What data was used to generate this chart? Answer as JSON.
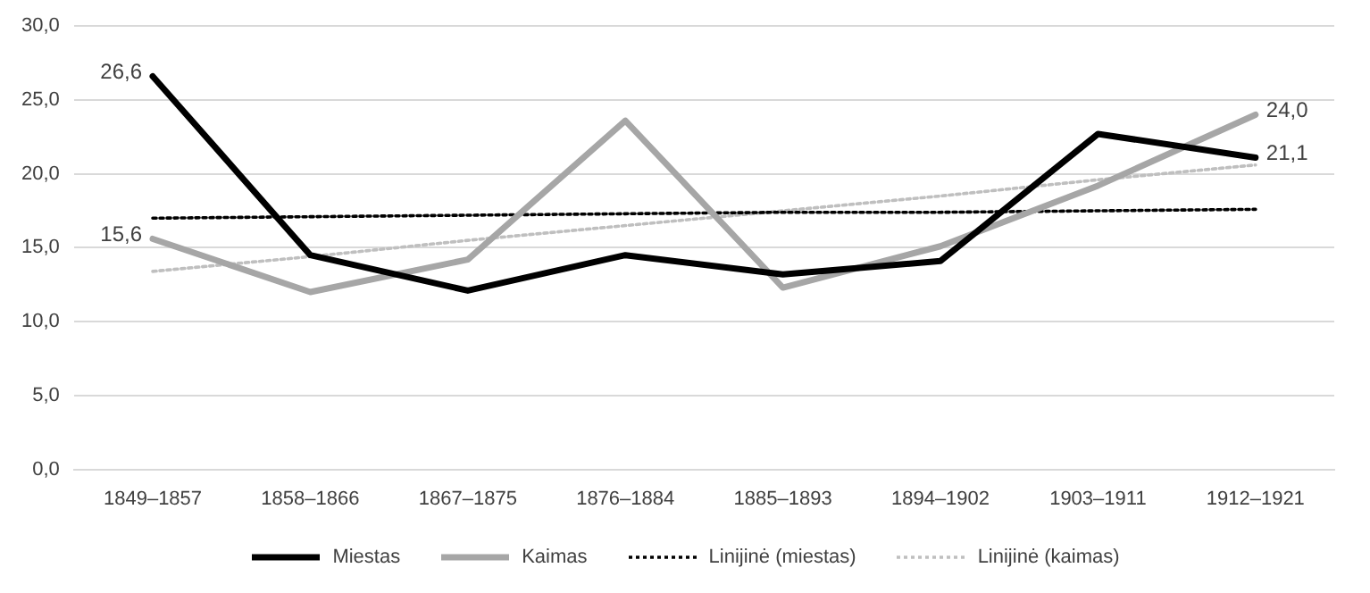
{
  "chart_data": {
    "type": "line",
    "categories": [
      "1849–1857",
      "1858–1866",
      "1867–1875",
      "1876–1884",
      "1885–1893",
      "1894–1902",
      "1903–1911",
      "1912–1921"
    ],
    "series": [
      {
        "name": "Miestas",
        "color": "#000000",
        "values": [
          26.6,
          14.5,
          12.1,
          14.5,
          13.2,
          14.1,
          22.7,
          21.1
        ],
        "value_labels": [
          "26,6",
          null,
          null,
          null,
          null,
          null,
          null,
          "21,1"
        ]
      },
      {
        "name": "Kaimas",
        "color": "#a6a6a6",
        "values": [
          15.6,
          12.0,
          14.2,
          23.6,
          12.3,
          15.1,
          19.2,
          24.0
        ],
        "value_labels": [
          "15,6",
          null,
          null,
          null,
          null,
          null,
          null,
          "24,0"
        ]
      },
      {
        "name": "Linijinė (miestas)",
        "color": "#000000",
        "line_style": "dotted",
        "values": [
          17.0,
          17.1,
          17.2,
          17.3,
          17.4,
          17.4,
          17.5,
          17.6
        ]
      },
      {
        "name": "Linijinė (kaimas)",
        "color": "#bfbfbf",
        "line_style": "dotted",
        "values": [
          13.4,
          14.4,
          15.5,
          16.5,
          17.5,
          18.5,
          19.6,
          20.6
        ]
      }
    ],
    "ylim": [
      0,
      30
    ],
    "yticks": [
      {
        "value": 0,
        "label": "0,0"
      },
      {
        "value": 5,
        "label": "5,0"
      },
      {
        "value": 10,
        "label": "10,0"
      },
      {
        "value": 15,
        "label": "15,0"
      },
      {
        "value": 20,
        "label": "20,0"
      },
      {
        "value": 25,
        "label": "25,0"
      },
      {
        "value": 30,
        "label": "30,0"
      }
    ],
    "grid": "y",
    "legend": "bottom",
    "marker": "none",
    "line_style": "solid"
  }
}
